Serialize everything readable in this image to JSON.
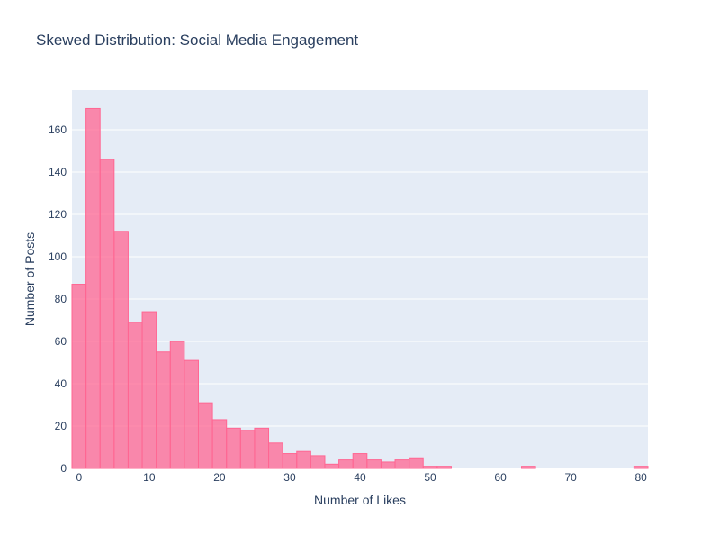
{
  "chart_data": {
    "type": "bar",
    "title": "Skewed Distribution: Social Media Engagement",
    "xlabel": "Number of Likes",
    "ylabel": "Number of Posts",
    "bin_width": 2,
    "bin_centers": [
      0,
      2,
      4,
      6,
      8,
      10,
      12,
      14,
      16,
      18,
      20,
      22,
      24,
      26,
      28,
      30,
      32,
      34,
      36,
      38,
      40,
      42,
      44,
      46,
      48,
      50,
      52,
      54,
      56,
      58,
      60,
      62,
      64,
      66,
      68,
      70,
      72,
      74,
      76,
      78,
      80
    ],
    "values": [
      87,
      170,
      146,
      112,
      69,
      74,
      55,
      60,
      51,
      31,
      23,
      19,
      18,
      19,
      12,
      7,
      8,
      6,
      2,
      4,
      7,
      4,
      3,
      4,
      5,
      1,
      1,
      0,
      0,
      0,
      0,
      0,
      1,
      0,
      0,
      0,
      0,
      0,
      0,
      0,
      1
    ],
    "xlim": [
      -1,
      81
    ],
    "ylim": [
      0,
      178.7
    ],
    "xticks": [
      0,
      10,
      20,
      30,
      40,
      50,
      60,
      70,
      80
    ],
    "yticks": [
      0,
      20,
      40,
      60,
      80,
      100,
      120,
      140,
      160
    ],
    "grid": true,
    "colors": {
      "bar": "#ff6692",
      "plot_bg": "#e5ecf6"
    }
  }
}
